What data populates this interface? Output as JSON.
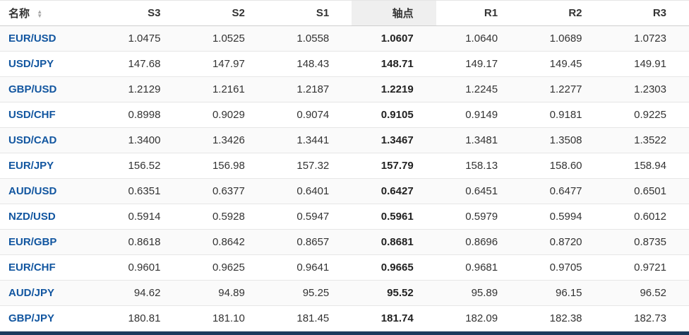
{
  "header": {
    "name_label": "名称",
    "columns": [
      "S3",
      "S2",
      "S1",
      "轴点",
      "R1",
      "R2",
      "R3"
    ],
    "pivot_index": 3
  },
  "rows": [
    {
      "pair": "EUR/USD",
      "values": [
        "1.0475",
        "1.0525",
        "1.0558",
        "1.0607",
        "1.0640",
        "1.0689",
        "1.0723"
      ]
    },
    {
      "pair": "USD/JPY",
      "values": [
        "147.68",
        "147.97",
        "148.43",
        "148.71",
        "149.17",
        "149.45",
        "149.91"
      ]
    },
    {
      "pair": "GBP/USD",
      "values": [
        "1.2129",
        "1.2161",
        "1.2187",
        "1.2219",
        "1.2245",
        "1.2277",
        "1.2303"
      ]
    },
    {
      "pair": "USD/CHF",
      "values": [
        "0.8998",
        "0.9029",
        "0.9074",
        "0.9105",
        "0.9149",
        "0.9181",
        "0.9225"
      ]
    },
    {
      "pair": "USD/CAD",
      "values": [
        "1.3400",
        "1.3426",
        "1.3441",
        "1.3467",
        "1.3481",
        "1.3508",
        "1.3522"
      ]
    },
    {
      "pair": "EUR/JPY",
      "values": [
        "156.52",
        "156.98",
        "157.32",
        "157.79",
        "158.13",
        "158.60",
        "158.94"
      ]
    },
    {
      "pair": "AUD/USD",
      "values": [
        "0.6351",
        "0.6377",
        "0.6401",
        "0.6427",
        "0.6451",
        "0.6477",
        "0.6501"
      ]
    },
    {
      "pair": "NZD/USD",
      "values": [
        "0.5914",
        "0.5928",
        "0.5947",
        "0.5961",
        "0.5979",
        "0.5994",
        "0.6012"
      ]
    },
    {
      "pair": "EUR/GBP",
      "values": [
        "0.8618",
        "0.8642",
        "0.8657",
        "0.8681",
        "0.8696",
        "0.8720",
        "0.8735"
      ]
    },
    {
      "pair": "EUR/CHF",
      "values": [
        "0.9601",
        "0.9625",
        "0.9641",
        "0.9665",
        "0.9681",
        "0.9705",
        "0.9721"
      ]
    },
    {
      "pair": "AUD/JPY",
      "values": [
        "94.62",
        "94.89",
        "95.25",
        "95.52",
        "95.89",
        "96.15",
        "96.52"
      ]
    },
    {
      "pair": "GBP/JPY",
      "values": [
        "180.81",
        "181.10",
        "181.45",
        "181.74",
        "182.09",
        "182.38",
        "182.73"
      ]
    }
  ],
  "colors": {
    "pair_link": "#1256a0",
    "bottom_bar": "#1c3a5c",
    "pivot_header_bg": "#efefef"
  },
  "chart_data": {
    "type": "table",
    "title": "",
    "columns": [
      "名称",
      "S3",
      "S2",
      "S1",
      "轴点",
      "R1",
      "R2",
      "R3"
    ],
    "rows": [
      [
        "EUR/USD",
        1.0475,
        1.0525,
        1.0558,
        1.0607,
        1.064,
        1.0689,
        1.0723
      ],
      [
        "USD/JPY",
        147.68,
        147.97,
        148.43,
        148.71,
        149.17,
        149.45,
        149.91
      ],
      [
        "GBP/USD",
        1.2129,
        1.2161,
        1.2187,
        1.2219,
        1.2245,
        1.2277,
        1.2303
      ],
      [
        "USD/CHF",
        0.8998,
        0.9029,
        0.9074,
        0.9105,
        0.9149,
        0.9181,
        0.9225
      ],
      [
        "USD/CAD",
        1.34,
        1.3426,
        1.3441,
        1.3467,
        1.3481,
        1.3508,
        1.3522
      ],
      [
        "EUR/JPY",
        156.52,
        156.98,
        157.32,
        157.79,
        158.13,
        158.6,
        158.94
      ],
      [
        "AUD/USD",
        0.6351,
        0.6377,
        0.6401,
        0.6427,
        0.6451,
        0.6477,
        0.6501
      ],
      [
        "NZD/USD",
        0.5914,
        0.5928,
        0.5947,
        0.5961,
        0.5979,
        0.5994,
        0.6012
      ],
      [
        "EUR/GBP",
        0.8618,
        0.8642,
        0.8657,
        0.8681,
        0.8696,
        0.872,
        0.8735
      ],
      [
        "EUR/CHF",
        0.9601,
        0.9625,
        0.9641,
        0.9665,
        0.9681,
        0.9705,
        0.9721
      ],
      [
        "AUD/JPY",
        94.62,
        94.89,
        95.25,
        95.52,
        95.89,
        96.15,
        96.52
      ],
      [
        "GBP/JPY",
        180.81,
        181.1,
        181.45,
        181.74,
        182.09,
        182.38,
        182.73
      ]
    ]
  }
}
